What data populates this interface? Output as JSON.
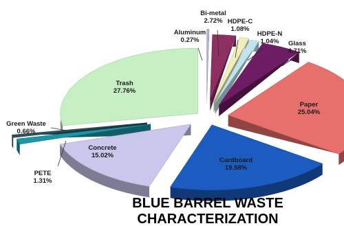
{
  "chart_data": {
    "type": "pie",
    "style": "3d-exploded",
    "title_lines": [
      "BLUE BARREL WASTE",
      "CHARACTERIZATION"
    ],
    "slices": [
      {
        "label": "Aluminum",
        "value_text": "0.27%",
        "value": 0.27,
        "color": "#b8b0d8"
      },
      {
        "label": "Bi-metal",
        "value_text": "2.72%",
        "value": 2.72,
        "color": "#8e2f62"
      },
      {
        "label": "HDPE-C",
        "value_text": "1.08%",
        "value": 1.08,
        "color": "#f2eebb"
      },
      {
        "label": "HDPE-N",
        "value_text": "1.04%",
        "value": 1.04,
        "color": "#bfe6ef"
      },
      {
        "label": "Glass",
        "value_text": "4.71%",
        "value": 4.71,
        "color": "#6e1c63"
      },
      {
        "label": "Paper",
        "value_text": "25.04%",
        "value": 25.04,
        "color": "#e8706c"
      },
      {
        "label": "Cardboard",
        "value_text": "19.58%",
        "value": 19.58,
        "color": "#1c5cc0"
      },
      {
        "label": "Concrete",
        "value_text": "15.02%",
        "value": 15.02,
        "color": "#c9c8ec"
      },
      {
        "label": "PETE",
        "value_text": "1.31%",
        "value": 1.31,
        "color": "#1c96a6"
      },
      {
        "label": "Green Waste",
        "value_text": "0.66%",
        "value": 0.66,
        "color": "#2a4f5e"
      },
      {
        "label": "Trash",
        "value_text": "27.76%",
        "value": 27.76,
        "color": "#c6f0c4"
      }
    ],
    "legend": "none",
    "grid": false
  }
}
